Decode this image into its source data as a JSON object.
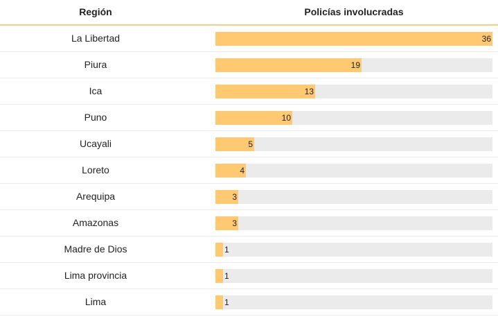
{
  "header": {
    "region_label": "Región",
    "police_label": "Policías involucradas"
  },
  "colors": {
    "bar_fill": "#fec970",
    "bar_track": "#ebebeb",
    "header_rule": "#f6cd86"
  },
  "chart_data": {
    "type": "bar",
    "orientation": "horizontal",
    "xlim": [
      0,
      36
    ],
    "categories": [
      "La Libertad",
      "Piura",
      "Ica",
      "Puno",
      "Ucayali",
      "Loreto",
      "Arequipa",
      "Amazonas",
      "Madre de Dios",
      "Lima provincia",
      "Lima"
    ],
    "values": [
      36,
      19,
      13,
      10,
      5,
      4,
      3,
      3,
      1,
      1,
      1
    ]
  }
}
